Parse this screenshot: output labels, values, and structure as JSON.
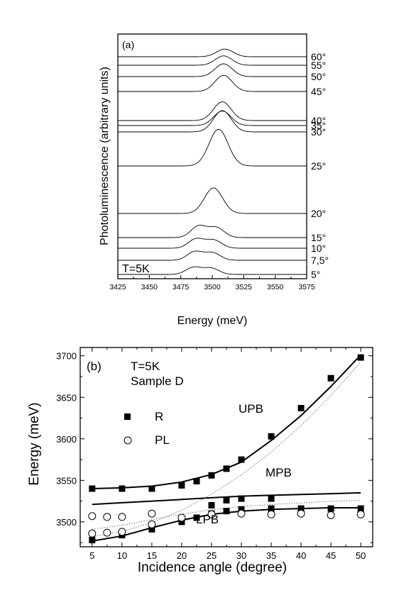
{
  "chart_data": [
    {
      "type": "line",
      "panel_label": "(a)",
      "xlabel": "Energy (meV)",
      "ylabel": "Photoluminescence (arbitrary units)",
      "xlim": [
        3425,
        3575
      ],
      "x_ticks": [
        "3425",
        "3450",
        "3475",
        "3500",
        "3525",
        "3550",
        "3575"
      ],
      "annotation": "T=5K",
      "series": [
        {
          "label": "60°",
          "peak_energy": 3510,
          "peak_height": 0.9
        },
        {
          "label": "55°",
          "peak_energy": 3509,
          "peak_height": 1.1
        },
        {
          "label": "50°",
          "peak_energy": 3509,
          "peak_height": 1.5
        },
        {
          "label": "45°",
          "peak_energy": 3509,
          "peak_height": 1.9
        },
        {
          "label": "40°",
          "peak_energy": 3508,
          "peak_height": 2.2
        },
        {
          "label": "35°",
          "peak_energy": 3508,
          "peak_height": 1.7
        },
        {
          "label": "30°",
          "peak_energy": 3508,
          "peak_height": 2.5
        },
        {
          "label": "25°",
          "peak_energy": 3505,
          "peak_height": 4.3
        },
        {
          "label": "20°",
          "peak_energy": 3501,
          "peak_height": 3.0
        },
        {
          "label": "15°",
          "peak_energy": 3495,
          "peak_height": 1.6
        },
        {
          "label": "10°",
          "peak_energy": 3493,
          "peak_height": 1.3
        },
        {
          "label": "7,5°",
          "peak_energy": 3492,
          "peak_height": 1.2
        },
        {
          "label": "5°",
          "peak_energy": 3491,
          "peak_height": 1.0
        }
      ]
    },
    {
      "type": "scatter",
      "panel_label": "(b)",
      "xlabel": "Incidence angle (degree)",
      "ylabel": "Energy (meV)",
      "xlim": [
        3,
        52
      ],
      "ylim": [
        3470,
        3710
      ],
      "x_ticks": [
        "5",
        "10",
        "15",
        "20",
        "25",
        "30",
        "35",
        "40",
        "45",
        "50"
      ],
      "y_ticks": [
        "3500",
        "3550",
        "3600",
        "3650",
        "3700"
      ],
      "annotation_lines": [
        "T=5K",
        "Sample D"
      ],
      "legend": [
        {
          "label": "R",
          "marker": "filled-square"
        },
        {
          "label": "PL",
          "marker": "open-circle"
        }
      ],
      "branch_labels": [
        "UPB",
        "MPB",
        "LPB"
      ],
      "R": {
        "x": [
          5,
          10,
          15,
          20,
          22.5,
          25,
          27.5,
          30,
          35,
          40,
          45,
          50,
          25,
          27.5,
          30,
          35,
          5,
          10,
          15,
          20,
          22.5,
          25,
          27.5,
          30,
          35,
          40,
          45,
          50
        ],
        "y": [
          3540,
          3540,
          3540,
          3544,
          3549,
          3556,
          3564,
          3575,
          3603,
          3637,
          3673,
          3698,
          3520,
          3526,
          3528,
          3528,
          3478,
          3484,
          3491,
          3500,
          3505,
          3510,
          3513,
          3515,
          3516,
          3516,
          3516,
          3516
        ]
      },
      "PL": {
        "x": [
          5,
          7.5,
          10,
          15,
          5,
          7.5,
          10,
          15,
          20,
          25,
          30,
          35,
          40,
          45,
          50
        ],
        "y": [
          3507,
          3506,
          3506,
          3510,
          3486,
          3487,
          3488,
          3497,
          3505,
          3509,
          3510,
          3509,
          3510,
          3508,
          3509
        ]
      },
      "fits": {
        "UPB": {
          "x": [
            5,
            10,
            15,
            20,
            25,
            30,
            35,
            40,
            45,
            50
          ],
          "y": [
            3540,
            3541,
            3543,
            3548,
            3557,
            3572,
            3598,
            3628,
            3663,
            3701
          ]
        },
        "MPB": {
          "x": [
            5,
            10,
            15,
            20,
            25,
            30,
            35,
            40,
            45,
            50
          ],
          "y": [
            3521,
            3523,
            3525,
            3527,
            3529,
            3531,
            3532,
            3533,
            3534,
            3535
          ]
        },
        "LPB": {
          "x": [
            5,
            10,
            15,
            20,
            25,
            30,
            35,
            40,
            45,
            50
          ],
          "y": [
            3477,
            3483,
            3493,
            3502,
            3509,
            3513,
            3515,
            3516,
            3517,
            3517
          ]
        }
      }
    }
  ]
}
